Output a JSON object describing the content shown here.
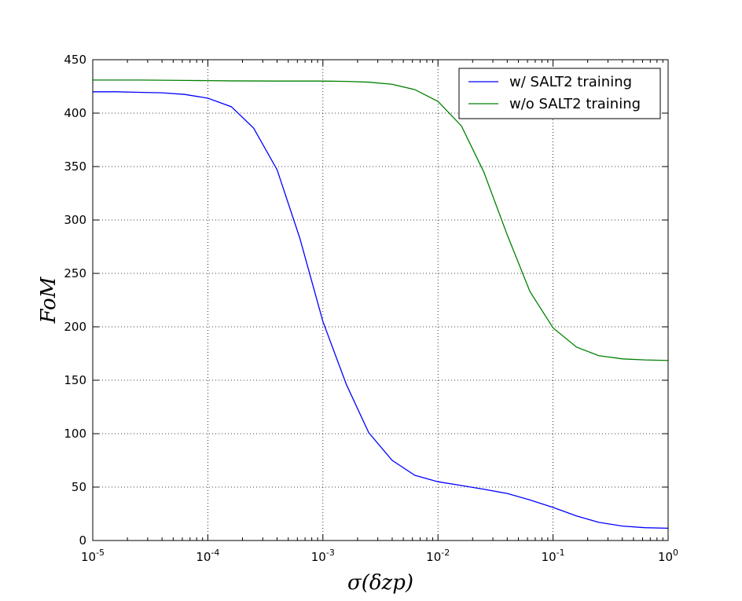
{
  "chart_data": {
    "type": "line",
    "title": "",
    "xlabel": "σ(δzp)",
    "ylabel": "FoM",
    "xscale": "log",
    "xlim": [
      1e-05,
      1
    ],
    "ylim": [
      0,
      450
    ],
    "grid": true,
    "legend_position": "top-right",
    "x_ticks": [
      {
        "value": 1e-05,
        "base": "10",
        "exp": "-5"
      },
      {
        "value": 0.0001,
        "base": "10",
        "exp": "-4"
      },
      {
        "value": 0.001,
        "base": "10",
        "exp": "-3"
      },
      {
        "value": 0.01,
        "base": "10",
        "exp": "-2"
      },
      {
        "value": 0.1,
        "base": "10",
        "exp": "-1"
      },
      {
        "value": 1,
        "base": "10",
        "exp": "0"
      }
    ],
    "y_ticks": [
      0,
      50,
      100,
      150,
      200,
      250,
      300,
      350,
      400,
      450
    ],
    "series": [
      {
        "name": "w/ SALT2 training",
        "color": "#0000ff",
        "x": [
          1e-05,
          1.6e-05,
          2.5e-05,
          4e-05,
          6.3e-05,
          0.0001,
          0.00016,
          0.00025,
          0.0004,
          0.00063,
          0.001,
          0.0016,
          0.0025,
          0.004,
          0.0063,
          0.01,
          0.016,
          0.025,
          0.04,
          0.063,
          0.1,
          0.16,
          0.25,
          0.4,
          0.63,
          1
        ],
        "y": [
          420,
          420,
          419.5,
          419,
          417.5,
          414,
          406,
          386,
          347,
          283,
          205,
          146,
          101,
          75,
          61,
          55,
          51.5,
          48,
          44,
          38,
          31,
          23,
          17,
          13.5,
          12,
          11.5
        ]
      },
      {
        "name": "w/o SALT2 training",
        "color": "#008000",
        "x": [
          1e-05,
          1.6e-05,
          2.5e-05,
          4e-05,
          6.3e-05,
          0.0001,
          0.00016,
          0.00025,
          0.0004,
          0.00063,
          0.001,
          0.0016,
          0.0025,
          0.004,
          0.0063,
          0.01,
          0.016,
          0.025,
          0.04,
          0.063,
          0.1,
          0.16,
          0.25,
          0.4,
          0.63,
          1
        ],
        "y": [
          431,
          431,
          431,
          430.8,
          430.6,
          430.4,
          430.2,
          430.1,
          430,
          430,
          430,
          429.7,
          429,
          427,
          422,
          411,
          388,
          345,
          286,
          233,
          199,
          181,
          173,
          170,
          169,
          168.5
        ]
      }
    ]
  }
}
